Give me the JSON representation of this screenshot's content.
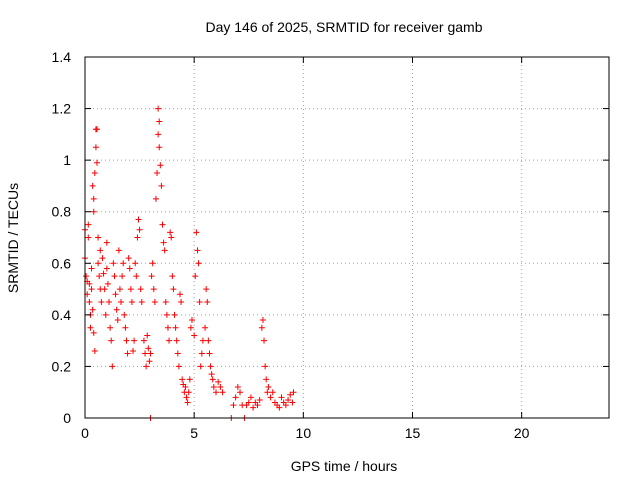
{
  "chart_data": {
    "type": "scatter",
    "title": "Day 146 of 2025, SRMTID for receiver gamb",
    "xlabel": "GPS time / hours",
    "ylabel": "SRMTID / TECUs",
    "xlim": [
      0,
      24
    ],
    "ylim": [
      0,
      1.4
    ],
    "xticks": [
      0,
      5,
      10,
      15,
      20
    ],
    "yticks": [
      0,
      0.2,
      0.4,
      0.6,
      0.8,
      1,
      1.2,
      1.4
    ],
    "xtick_labels": [
      "0",
      "5",
      "10",
      "15",
      "20"
    ],
    "ytick_labels": [
      "0",
      "0.2",
      "0.4",
      "0.6",
      "0.8",
      "1",
      "1.2",
      "1.4"
    ],
    "grid": true,
    "legend": "none",
    "marker": "plus",
    "colors": {
      "series": "#ff0000",
      "grid": "#a0a0a0",
      "axis": "#000000"
    },
    "series": [
      {
        "values": [
          [
            0.0,
            0.73
          ],
          [
            0.0,
            0.62
          ],
          [
            0.05,
            0.55
          ],
          [
            0.1,
            0.53
          ],
          [
            0.1,
            0.48
          ],
          [
            0.15,
            0.75
          ],
          [
            0.15,
            0.7
          ],
          [
            0.2,
            0.52
          ],
          [
            0.2,
            0.45
          ],
          [
            0.25,
            0.4
          ],
          [
            0.25,
            0.35
          ],
          [
            0.3,
            0.58
          ],
          [
            0.3,
            0.5
          ],
          [
            0.35,
            0.42
          ],
          [
            0.35,
            0.9
          ],
          [
            0.4,
            0.85
          ],
          [
            0.4,
            0.8
          ],
          [
            0.4,
            0.33
          ],
          [
            0.45,
            0.26
          ],
          [
            0.45,
            0.95
          ],
          [
            0.5,
            1.12
          ],
          [
            0.5,
            1.05
          ],
          [
            0.55,
            0.99
          ],
          [
            0.55,
            1.12
          ],
          [
            0.6,
            0.7
          ],
          [
            0.6,
            0.6
          ],
          [
            0.65,
            0.55
          ],
          [
            0.7,
            0.65
          ],
          [
            0.7,
            0.5
          ],
          [
            0.75,
            0.45
          ],
          [
            0.8,
            0.62
          ],
          [
            0.85,
            0.56
          ],
          [
            0.9,
            0.5
          ],
          [
            0.95,
            0.4
          ],
          [
            1.0,
            0.58
          ],
          [
            1.0,
            0.68
          ],
          [
            1.05,
            0.52
          ],
          [
            1.1,
            0.45
          ],
          [
            1.15,
            0.35
          ],
          [
            1.2,
            0.3
          ],
          [
            1.25,
            0.2
          ],
          [
            1.3,
            0.6
          ],
          [
            1.35,
            0.55
          ],
          [
            1.4,
            0.48
          ],
          [
            1.45,
            0.42
          ],
          [
            1.5,
            0.38
          ],
          [
            1.55,
            0.65
          ],
          [
            1.6,
            0.5
          ],
          [
            1.65,
            0.45
          ],
          [
            1.7,
            0.55
          ],
          [
            1.75,
            0.6
          ],
          [
            1.8,
            0.4
          ],
          [
            1.85,
            0.35
          ],
          [
            1.9,
            0.3
          ],
          [
            1.95,
            0.25
          ],
          [
            2.0,
            0.62
          ],
          [
            2.05,
            0.58
          ],
          [
            2.1,
            0.5
          ],
          [
            2.15,
            0.45
          ],
          [
            2.2,
            0.26
          ],
          [
            2.25,
            0.3
          ],
          [
            2.3,
            0.6
          ],
          [
            2.35,
            0.55
          ],
          [
            2.4,
            0.7
          ],
          [
            2.45,
            0.77
          ],
          [
            2.5,
            0.73
          ],
          [
            2.55,
            0.5
          ],
          [
            2.6,
            0.45
          ],
          [
            2.7,
            0.3
          ],
          [
            2.75,
            0.25
          ],
          [
            2.8,
            0.2
          ],
          [
            2.85,
            0.32
          ],
          [
            2.9,
            0.27
          ],
          [
            2.95,
            0.22
          ],
          [
            3.0,
            0.25
          ],
          [
            3.05,
            0.55
          ],
          [
            3.1,
            0.6
          ],
          [
            3.15,
            0.5
          ],
          [
            3.2,
            0.45
          ],
          [
            3.25,
            0.85
          ],
          [
            3.3,
            0.95
          ],
          [
            3.35,
            1.1
          ],
          [
            3.35,
            1.2
          ],
          [
            3.4,
            1.15
          ],
          [
            3.4,
            1.05
          ],
          [
            3.45,
            0.98
          ],
          [
            3.5,
            0.9
          ],
          [
            3.55,
            0.75
          ],
          [
            3.6,
            0.68
          ],
          [
            3.65,
            0.65
          ],
          [
            3.7,
            0.45
          ],
          [
            3.75,
            0.4
          ],
          [
            3.8,
            0.35
          ],
          [
            3.85,
            0.3
          ],
          [
            3.9,
            0.72
          ],
          [
            3.95,
            0.7
          ],
          [
            4.0,
            0.55
          ],
          [
            4.05,
            0.5
          ],
          [
            4.1,
            0.4
          ],
          [
            4.15,
            0.35
          ],
          [
            4.2,
            0.3
          ],
          [
            4.25,
            0.25
          ],
          [
            4.3,
            0.2
          ],
          [
            4.35,
            0.48
          ],
          [
            4.4,
            0.45
          ],
          [
            4.45,
            0.15
          ],
          [
            4.5,
            0.13
          ],
          [
            4.55,
            0.1
          ],
          [
            4.6,
            0.12
          ],
          [
            4.65,
            0.08
          ],
          [
            4.7,
            0.06
          ],
          [
            4.75,
            0.1
          ],
          [
            4.8,
            0.15
          ],
          [
            4.85,
            0.35
          ],
          [
            4.9,
            0.38
          ],
          [
            5.0,
            0.32
          ],
          [
            5.05,
            0.55
          ],
          [
            5.1,
            0.72
          ],
          [
            5.15,
            0.65
          ],
          [
            5.2,
            0.6
          ],
          [
            5.25,
            0.45
          ],
          [
            5.3,
            0.2
          ],
          [
            5.35,
            0.25
          ],
          [
            5.4,
            0.3
          ],
          [
            5.5,
            0.35
          ],
          [
            5.55,
            0.5
          ],
          [
            5.6,
            0.45
          ],
          [
            5.65,
            0.3
          ],
          [
            5.7,
            0.25
          ],
          [
            5.75,
            0.2
          ],
          [
            5.8,
            0.17
          ],
          [
            5.85,
            0.15
          ],
          [
            5.9,
            0.12
          ],
          [
            6.0,
            0.1
          ],
          [
            6.1,
            0.14
          ],
          [
            6.2,
            0.12
          ],
          [
            6.3,
            0.1
          ],
          [
            6.7,
            0.0
          ],
          [
            6.8,
            0.05
          ],
          [
            6.9,
            0.08
          ],
          [
            7.0,
            0.12
          ],
          [
            7.1,
            0.1
          ],
          [
            7.2,
            0.05
          ],
          [
            7.3,
            0.0
          ],
          [
            7.4,
            0.05
          ],
          [
            7.5,
            0.06
          ],
          [
            7.6,
            0.08
          ],
          [
            7.7,
            0.04
          ],
          [
            7.8,
            0.06
          ],
          [
            7.9,
            0.05
          ],
          [
            8.0,
            0.07
          ],
          [
            8.1,
            0.35
          ],
          [
            8.15,
            0.38
          ],
          [
            8.2,
            0.3
          ],
          [
            8.25,
            0.2
          ],
          [
            8.3,
            0.15
          ],
          [
            8.35,
            0.1
          ],
          [
            8.4,
            0.12
          ],
          [
            8.5,
            0.08
          ],
          [
            8.6,
            0.1
          ],
          [
            8.7,
            0.06
          ],
          [
            8.8,
            0.05
          ],
          [
            8.9,
            0.04
          ],
          [
            9.0,
            0.08
          ],
          [
            9.1,
            0.06
          ],
          [
            9.2,
            0.05
          ],
          [
            9.3,
            0.07
          ],
          [
            9.4,
            0.09
          ],
          [
            9.5,
            0.06
          ],
          [
            9.55,
            0.1
          ],
          [
            3.0,
            0.0
          ]
        ]
      }
    ]
  }
}
